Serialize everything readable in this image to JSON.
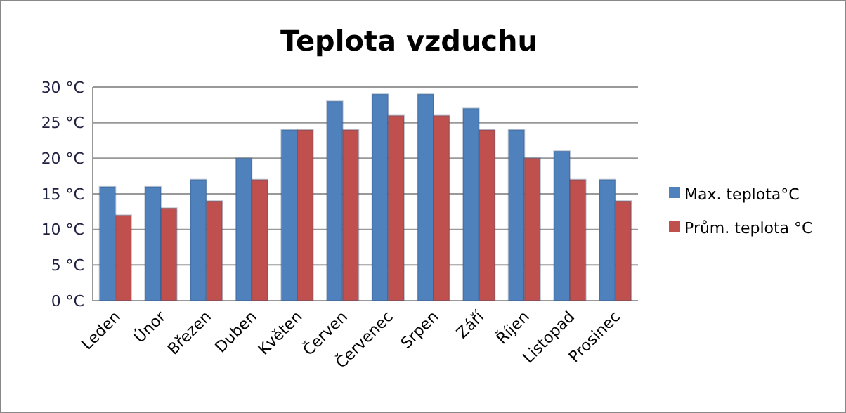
{
  "chart_data": {
    "type": "bar",
    "title": "Teplota vzduchu",
    "categories": [
      "Leden",
      "Únor",
      "Březen",
      "Duben",
      "Květen",
      "Červen",
      "Červenec",
      "Srpen",
      "Září",
      "Říjen",
      "Listopad",
      "Prosinec"
    ],
    "series": [
      {
        "name": "Max. teplota°C",
        "color": "#4f81bd",
        "values": [
          16,
          16,
          17,
          20,
          24,
          28,
          29,
          29,
          27,
          24,
          21,
          17
        ]
      },
      {
        "name": "Prům. teplota °C",
        "color": "#c0504d",
        "values": [
          12,
          13,
          14,
          17,
          24,
          24,
          26,
          26,
          24,
          20,
          17,
          14
        ]
      }
    ],
    "ylim": [
      0,
      30
    ],
    "yticks": [
      {
        "value": 0,
        "label": "0 °C"
      },
      {
        "value": 5,
        "label": "5 °C"
      },
      {
        "value": 10,
        "label": "10 °C"
      },
      {
        "value": 15,
        "label": "15 °C"
      },
      {
        "value": 20,
        "label": "20 °C"
      },
      {
        "value": 25,
        "label": "25 °C"
      },
      {
        "value": 30,
        "label": "30 °C"
      }
    ],
    "grid": "y",
    "legend": "right"
  }
}
